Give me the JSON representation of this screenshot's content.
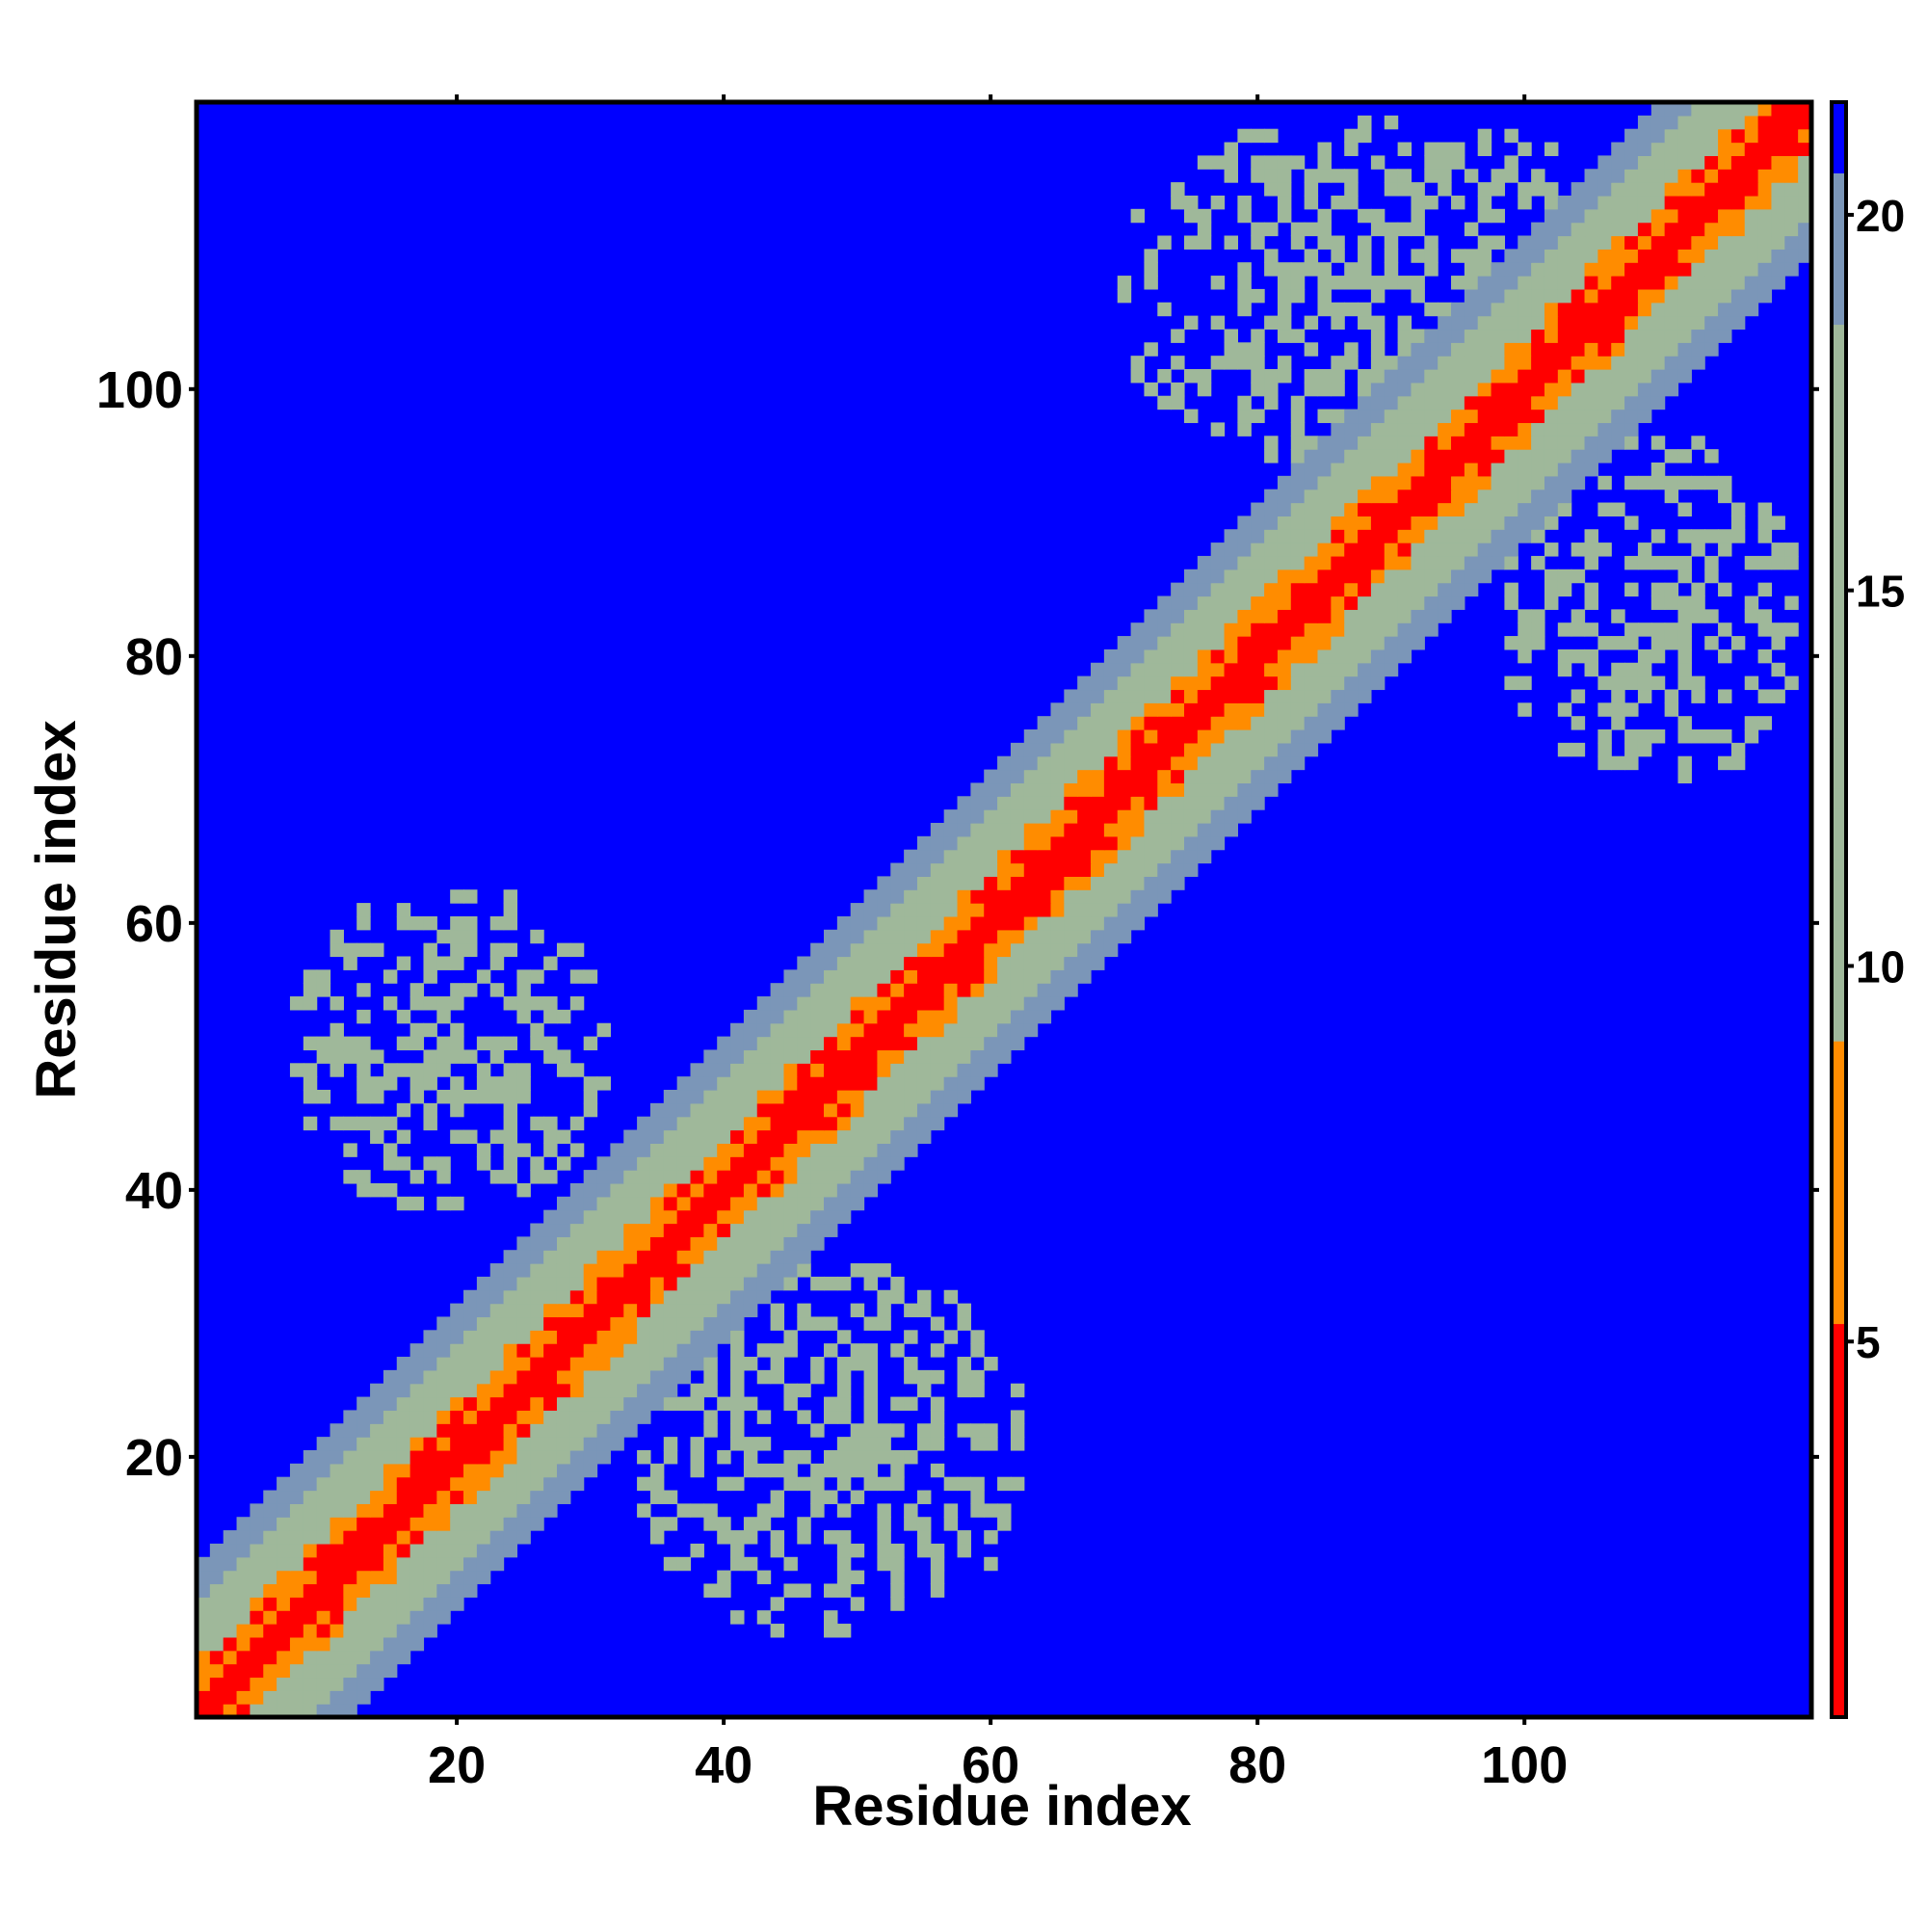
{
  "chart_data": {
    "type": "heatmap",
    "title": "",
    "xlabel": "Residue index",
    "ylabel": "Residue index",
    "n_residues": 121,
    "xlim": [
      1,
      121
    ],
    "ylim": [
      1,
      121
    ],
    "x_ticks": [
      20,
      40,
      60,
      80,
      100
    ],
    "y_ticks": [
      20,
      40,
      60,
      80,
      100
    ],
    "colorbar": {
      "ticks": [
        5,
        10,
        15,
        20
      ],
      "range": [
        0,
        21.5
      ],
      "legend_position": "right"
    },
    "colors": {
      "background": "#0000ff",
      "near": "#ff0000",
      "close": "#ff8c00",
      "mid": "#9fb89a",
      "far": "#7b96b8"
    },
    "band": {
      "description_levels": [
        "diagonal red",
        "orange",
        "sage",
        "grey-blue",
        "blue"
      ],
      "half_widths_in_residues": [
        1,
        3,
        8,
        11
      ]
    },
    "contact_regions": [
      {
        "x_range": [
          7,
          32
        ],
        "y_range": [
          38,
          63
        ]
      },
      {
        "x_range": [
          33,
          63
        ],
        "y_range": [
          6,
          35
        ]
      },
      {
        "x_range": [
          69,
          110
        ],
        "y_range": [
          93,
          121
        ]
      },
      {
        "x_range": [
          98,
          121
        ],
        "y_range": [
          69,
          97
        ]
      }
    ],
    "grid": false
  }
}
